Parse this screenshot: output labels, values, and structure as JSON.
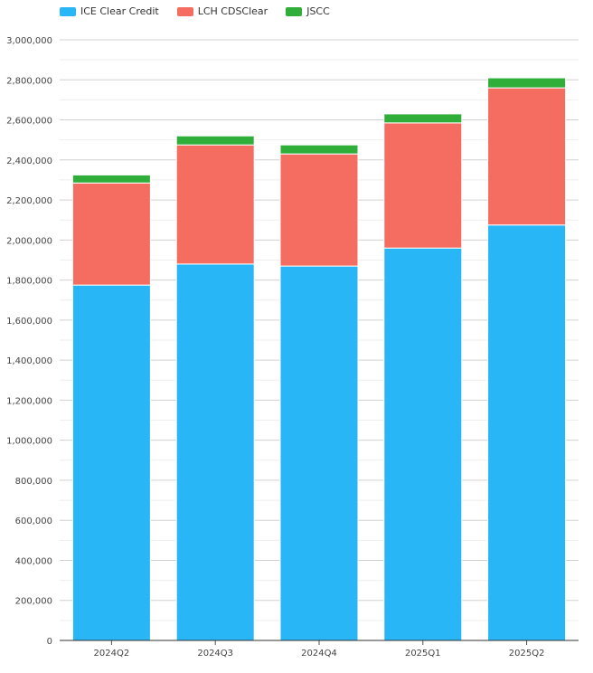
{
  "chart_data": {
    "type": "bar",
    "stacked": true,
    "categories": [
      "2024Q2",
      "2024Q3",
      "2024Q4",
      "2025Q1",
      "2025Q2"
    ],
    "series": [
      {
        "name": "ICE Clear Credit",
        "color": "#29b6f6",
        "values": [
          1775000,
          1880000,
          1870000,
          1960000,
          2075000
        ]
      },
      {
        "name": "LCH CDSClear",
        "color": "#f46d60",
        "values": [
          510000,
          595000,
          560000,
          625000,
          685000
        ]
      },
      {
        "name": "JSCC",
        "color": "#2fae3a",
        "values": [
          40000,
          45000,
          45000,
          45000,
          50000
        ]
      }
    ],
    "ylim": [
      0,
      3000000
    ],
    "ytick_step": 200000,
    "ytick_labels": [
      "0",
      "200,000",
      "400,000",
      "600,000",
      "800,000",
      "1,000,000",
      "1,200,000",
      "1,400,000",
      "1,600,000",
      "1,800,000",
      "2,000,000",
      "2,200,000",
      "2,400,000",
      "2,600,000",
      "2,800,000",
      "3,000,000"
    ],
    "title": "",
    "xlabel": "",
    "ylabel": "",
    "grid": true,
    "legend_position": "top-left"
  }
}
